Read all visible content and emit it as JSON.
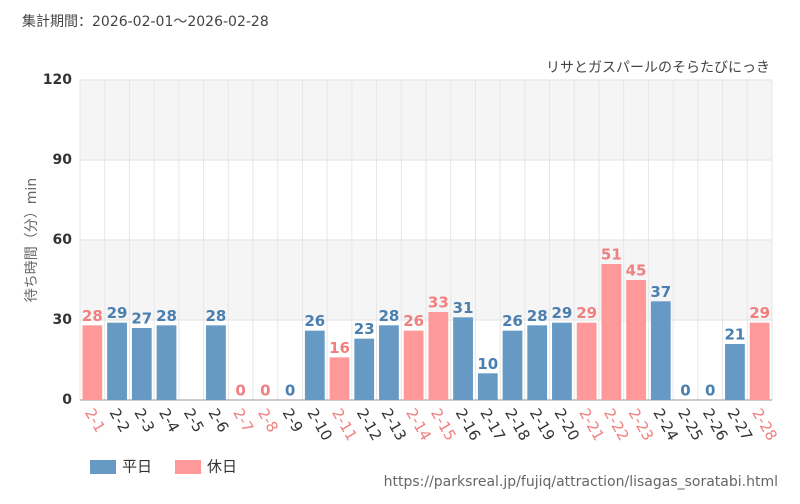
{
  "chart_data": {
    "type": "bar",
    "title": "集計期間：2026-02-01～2026-02-28",
    "subtitle": "リサとガスパールのそらたびにっき",
    "y_label": "待ち時間（分）min",
    "source": "https://parksreal.jp/fujiq/attraction/lisagas_soratabi.html",
    "categories": [
      "2-1",
      "2-2",
      "2-3",
      "2-4",
      "2-5",
      "2-6",
      "2-7",
      "2-8",
      "2-9",
      "2-10",
      "2-11",
      "2-12",
      "2-13",
      "2-14",
      "2-15",
      "2-16",
      "2-17",
      "2-18",
      "2-19",
      "2-20",
      "2-21",
      "2-22",
      "2-23",
      "2-24",
      "2-25",
      "2-26",
      "2-27",
      "2-28"
    ],
    "series": [
      {
        "name": "平日",
        "color": "#6699c4",
        "label_color": "#4a7fb0",
        "values": [
          null,
          29,
          27,
          28,
          null,
          28,
          null,
          null,
          0,
          26,
          null,
          23,
          28,
          null,
          null,
          31,
          10,
          26,
          28,
          29,
          null,
          null,
          null,
          37,
          0,
          0,
          21,
          null
        ]
      },
      {
        "name": "休日",
        "color": "#ff9999",
        "label_color": "#f07f7f",
        "values": [
          28,
          null,
          null,
          null,
          null,
          null,
          0,
          0,
          null,
          null,
          16,
          null,
          null,
          26,
          33,
          null,
          null,
          null,
          null,
          null,
          29,
          51,
          45,
          null,
          null,
          null,
          null,
          29
        ]
      }
    ],
    "ylim": [
      0,
      120
    ],
    "yticks": [
      0,
      30,
      60,
      90,
      120
    ],
    "grid": true
  }
}
